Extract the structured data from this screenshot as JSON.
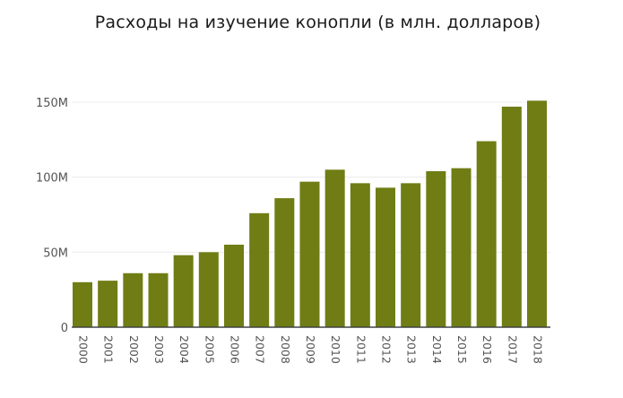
{
  "chart_data": {
    "type": "bar",
    "title": "Расходы на изучение конопли (в млн. долларов)",
    "xlabel": "",
    "ylabel": "",
    "categories": [
      "2000",
      "2001",
      "2002",
      "2003",
      "2004",
      "2005",
      "2006",
      "2007",
      "2008",
      "2009",
      "2010",
      "2011",
      "2012",
      "2013",
      "2014",
      "2015",
      "2016",
      "2017",
      "2018"
    ],
    "values": [
      30,
      31,
      36,
      36,
      48,
      50,
      55,
      76,
      86,
      97,
      105,
      96,
      93,
      96,
      104,
      106,
      124,
      147,
      151
    ],
    "ylim": [
      0,
      165
    ],
    "yticks": [
      {
        "value": 0,
        "label": "0"
      },
      {
        "value": 50,
        "label": "50M"
      },
      {
        "value": 100,
        "label": "100M"
      },
      {
        "value": 150,
        "label": "150M"
      }
    ],
    "grid": true,
    "bar_color": "#6f7d14",
    "grid_color": "#ececec",
    "axis_color": "#444444"
  }
}
